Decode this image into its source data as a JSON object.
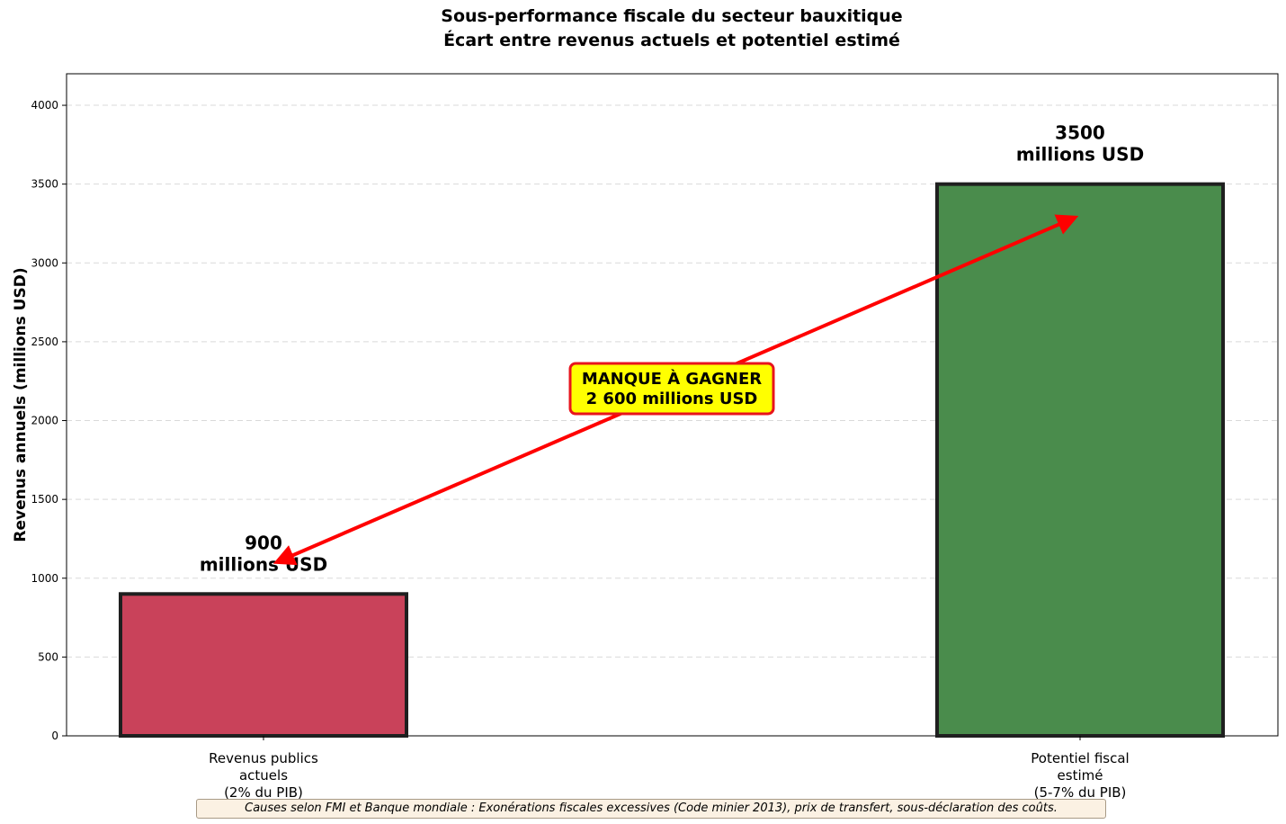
{
  "chart_data": {
    "type": "bar",
    "title": "Sous-performance fiscale du secteur bauxitique",
    "subtitle": "Écart entre revenus actuels et potentiel estimé",
    "ylabel": "Revenus annuels (millions USD)",
    "xlabel": "",
    "ylim": [
      0,
      4200
    ],
    "yticks": [
      0,
      500,
      1000,
      1500,
      2000,
      2500,
      3000,
      3500,
      4000
    ],
    "grid": true,
    "categories": [
      [
        "Revenus publics",
        "actuels",
        "(2% du PIB)"
      ],
      [
        "Potentiel fiscal",
        "estimé",
        "(5-7% du PIB)"
      ]
    ],
    "values": [
      900,
      3500
    ],
    "colors": [
      "#c9425a",
      "#4a8c4c"
    ],
    "edge_color": "#1f1f1f",
    "value_labels": [
      [
        "900",
        "millions USD"
      ],
      [
        "3500",
        "millions USD"
      ]
    ],
    "annotation": {
      "lines": [
        "MANQUE À GAGNER",
        "2 600 millions USD"
      ],
      "box_color": "#ffff00",
      "border_color": "#e8141c",
      "arrow_color": "#ff0000",
      "arrow_from": [
        0.02,
        1110
      ],
      "arrow_to": [
        0.99,
        3280
      ]
    },
    "footnote": "Causes selon FMI et Banque mondiale : Exonérations fiscales excessives (Code minier 2013), prix de transfert, sous-déclaration des coûts."
  }
}
